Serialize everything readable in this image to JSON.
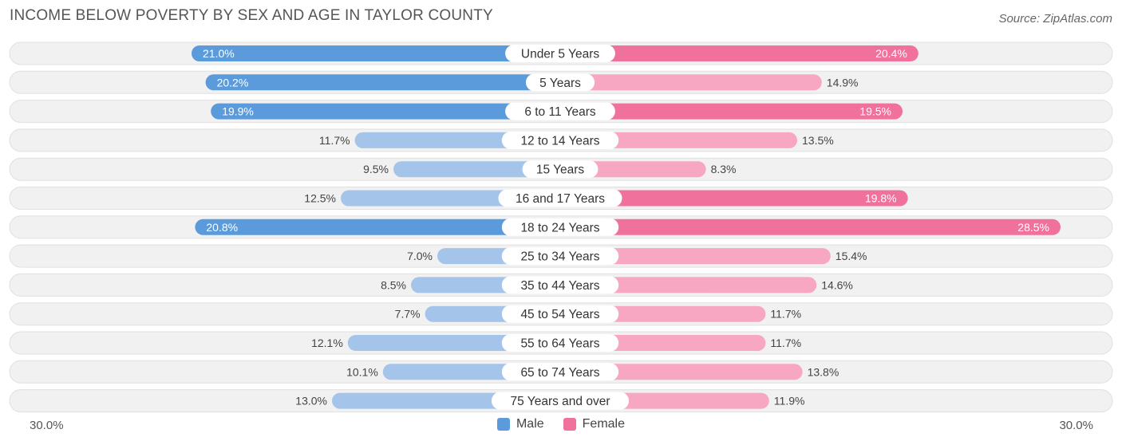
{
  "title": "INCOME BELOW POVERTY BY SEX AND AGE IN TAYLOR COUNTY",
  "source": "Source: ZipAtlas.com",
  "axis": {
    "left_label": "30.0%",
    "right_label": "30.0%"
  },
  "legend": {
    "male": "Male",
    "female": "Female"
  },
  "colors": {
    "male_strong": "#5b9bdb",
    "male_light": "#a4c4ea",
    "female_strong": "#f0719b",
    "female_light": "#f7a7c1",
    "track": "#f1f1f1",
    "track_border": "#e0e0e0"
  },
  "chart_data": {
    "type": "bar",
    "orientation": "horizontal-diverging",
    "xlim": [
      -30,
      30
    ],
    "categories": [
      "Under 5 Years",
      "5 Years",
      "6 to 11 Years",
      "12 to 14 Years",
      "15 Years",
      "16 and 17 Years",
      "18 to 24 Years",
      "25 to 34 Years",
      "35 to 44 Years",
      "45 to 54 Years",
      "55 to 64 Years",
      "65 to 74 Years",
      "75 Years and over"
    ],
    "series": [
      {
        "name": "Male",
        "values": [
          21.0,
          20.2,
          19.9,
          11.7,
          9.5,
          12.5,
          20.8,
          7.0,
          8.5,
          7.7,
          12.1,
          10.1,
          13.0
        ]
      },
      {
        "name": "Female",
        "values": [
          20.4,
          14.9,
          19.5,
          13.5,
          8.3,
          19.8,
          28.5,
          15.4,
          14.6,
          11.7,
          11.7,
          13.8,
          11.9
        ]
      }
    ],
    "value_labels": {
      "Male": [
        "21.0%",
        "20.2%",
        "19.9%",
        "11.7%",
        "9.5%",
        "12.5%",
        "20.8%",
        "7.0%",
        "8.5%",
        "7.7%",
        "12.1%",
        "10.1%",
        "13.0%"
      ],
      "Female": [
        "20.4%",
        "14.9%",
        "19.5%",
        "13.5%",
        "8.3%",
        "19.8%",
        "28.5%",
        "15.4%",
        "14.6%",
        "11.7%",
        "11.7%",
        "13.8%",
        "11.9%"
      ]
    }
  }
}
